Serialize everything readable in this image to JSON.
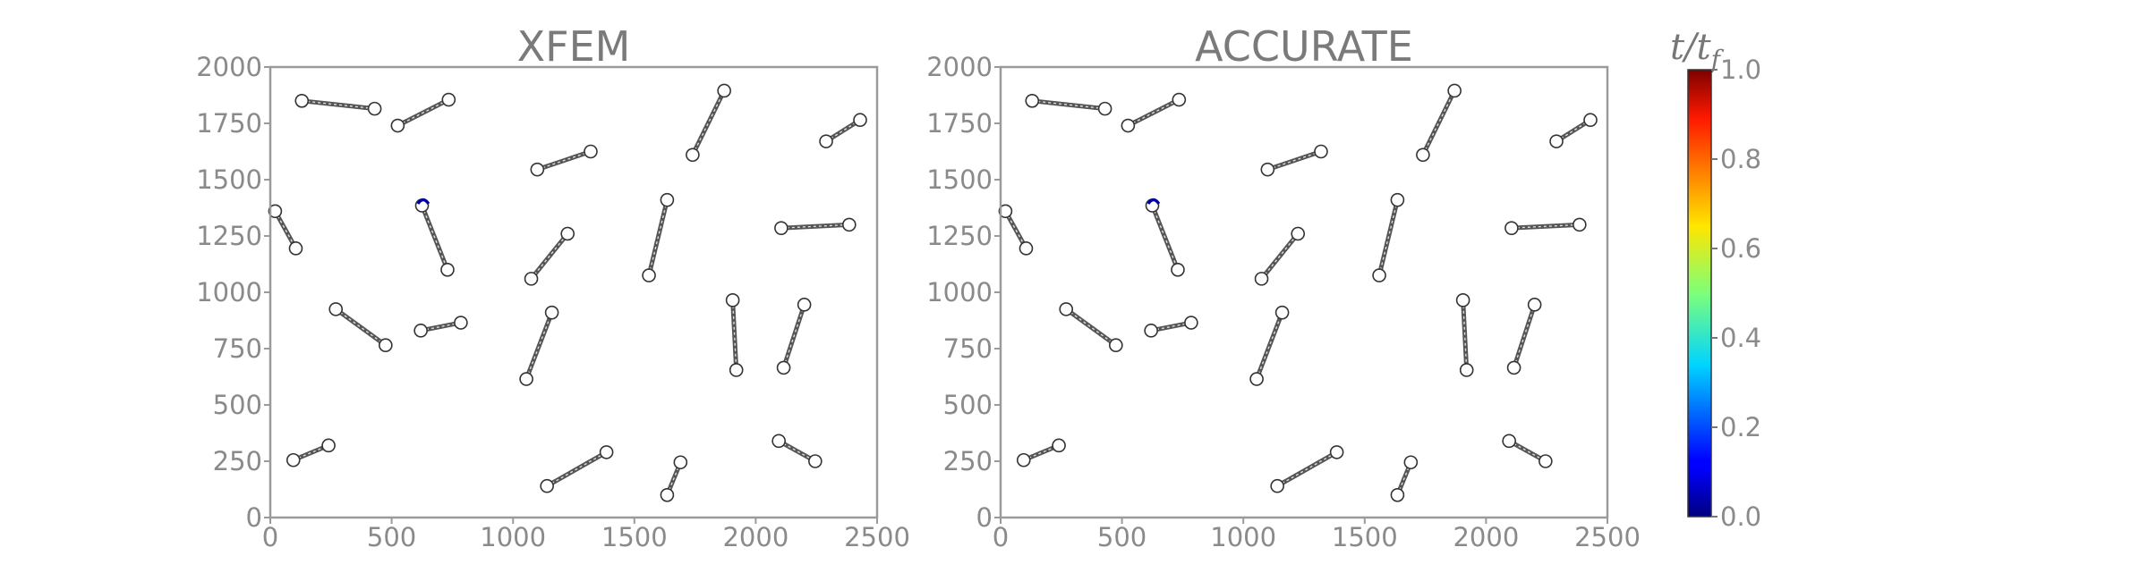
{
  "chart_data": [
    {
      "type": "scatter",
      "title": "XFEM",
      "xlim": [
        0,
        2500
      ],
      "ylim": [
        0,
        2000
      ],
      "xticks": [
        "0",
        "500",
        "1000",
        "1500",
        "2000",
        "2500"
      ],
      "yticks": [
        "0",
        "250",
        "500",
        "750",
        "1000",
        "1250",
        "1500",
        "1750",
        "2000"
      ],
      "segments": [
        {
          "x1": 130,
          "y1": 1850,
          "x2": 430,
          "y2": 1815
        },
        {
          "x1": 525,
          "y1": 1740,
          "x2": 735,
          "y2": 1855
        },
        {
          "x1": 1100,
          "y1": 1545,
          "x2": 1320,
          "y2": 1625
        },
        {
          "x1": 1740,
          "y1": 1610,
          "x2": 1870,
          "y2": 1895
        },
        {
          "x1": 2290,
          "y1": 1670,
          "x2": 2430,
          "y2": 1765
        },
        {
          "x1": 20,
          "y1": 1360,
          "x2": 105,
          "y2": 1195
        },
        {
          "x1": 625,
          "y1": 1385,
          "x2": 730,
          "y2": 1100
        },
        {
          "x1": 1075,
          "y1": 1060,
          "x2": 1225,
          "y2": 1260
        },
        {
          "x1": 1560,
          "y1": 1075,
          "x2": 1635,
          "y2": 1410
        },
        {
          "x1": 2105,
          "y1": 1285,
          "x2": 2385,
          "y2": 1300
        },
        {
          "x1": 270,
          "y1": 925,
          "x2": 475,
          "y2": 765
        },
        {
          "x1": 620,
          "y1": 830,
          "x2": 785,
          "y2": 865
        },
        {
          "x1": 1055,
          "y1": 615,
          "x2": 1160,
          "y2": 910
        },
        {
          "x1": 1905,
          "y1": 965,
          "x2": 1920,
          "y2": 655
        },
        {
          "x1": 2115,
          "y1": 665,
          "x2": 2200,
          "y2": 945
        },
        {
          "x1": 95,
          "y1": 255,
          "x2": 240,
          "y2": 320
        },
        {
          "x1": 1140,
          "y1": 140,
          "x2": 1385,
          "y2": 290
        },
        {
          "x1": 1635,
          "y1": 100,
          "x2": 1690,
          "y2": 245
        },
        {
          "x1": 2095,
          "y1": 340,
          "x2": 2245,
          "y2": 250
        }
      ],
      "tip_marker": {
        "x": 630,
        "y": 1405
      }
    },
    {
      "type": "scatter",
      "title": "ACCURATE",
      "xlim": [
        0,
        2500
      ],
      "ylim": [
        0,
        2000
      ],
      "xticks": [
        "0",
        "500",
        "1000",
        "1500",
        "2000",
        "2500"
      ],
      "yticks": [
        "0",
        "250",
        "500",
        "750",
        "1000",
        "1250",
        "1500",
        "1750",
        "2000"
      ],
      "segments": [
        {
          "x1": 130,
          "y1": 1850,
          "x2": 430,
          "y2": 1815
        },
        {
          "x1": 525,
          "y1": 1740,
          "x2": 735,
          "y2": 1855
        },
        {
          "x1": 1100,
          "y1": 1545,
          "x2": 1320,
          "y2": 1625
        },
        {
          "x1": 1740,
          "y1": 1610,
          "x2": 1870,
          "y2": 1895
        },
        {
          "x1": 2290,
          "y1": 1670,
          "x2": 2430,
          "y2": 1765
        },
        {
          "x1": 20,
          "y1": 1360,
          "x2": 105,
          "y2": 1195
        },
        {
          "x1": 625,
          "y1": 1385,
          "x2": 730,
          "y2": 1100
        },
        {
          "x1": 1075,
          "y1": 1060,
          "x2": 1225,
          "y2": 1260
        },
        {
          "x1": 1560,
          "y1": 1075,
          "x2": 1635,
          "y2": 1410
        },
        {
          "x1": 2105,
          "y1": 1285,
          "x2": 2385,
          "y2": 1300
        },
        {
          "x1": 270,
          "y1": 925,
          "x2": 475,
          "y2": 765
        },
        {
          "x1": 620,
          "y1": 830,
          "x2": 785,
          "y2": 865
        },
        {
          "x1": 1055,
          "y1": 615,
          "x2": 1160,
          "y2": 910
        },
        {
          "x1": 1905,
          "y1": 965,
          "x2": 1920,
          "y2": 655
        },
        {
          "x1": 2115,
          "y1": 665,
          "x2": 2200,
          "y2": 945
        },
        {
          "x1": 95,
          "y1": 255,
          "x2": 240,
          "y2": 320
        },
        {
          "x1": 1140,
          "y1": 140,
          "x2": 1385,
          "y2": 290
        },
        {
          "x1": 1635,
          "y1": 100,
          "x2": 1690,
          "y2": 245
        },
        {
          "x1": 2095,
          "y1": 340,
          "x2": 2245,
          "y2": 250
        }
      ],
      "tip_marker": {
        "x": 630,
        "y": 1405
      }
    }
  ],
  "colorbar": {
    "label": "t/t_f",
    "range": [
      0.0,
      1.0
    ],
    "ticks": [
      "0.0",
      "0.2",
      "0.4",
      "0.6",
      "0.8",
      "1.0"
    ],
    "colormap": "jet",
    "crack_color": "#555555",
    "tip_color": "#0000aa"
  }
}
